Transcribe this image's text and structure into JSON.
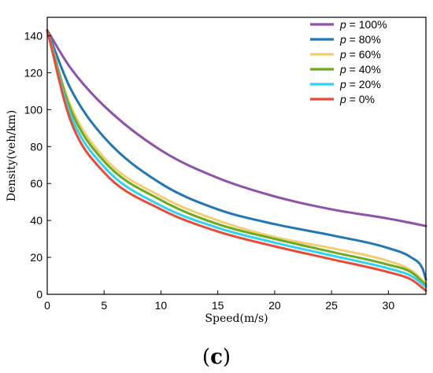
{
  "chart_data": {
    "type": "line",
    "xlabel": "Speed(m/s)",
    "ylabel": "Density(veh/km)",
    "xlim": [
      0,
      33.3
    ],
    "ylim": [
      0,
      150
    ],
    "xticks": [
      0,
      5,
      10,
      15,
      20,
      25,
      30
    ],
    "yticks": [
      0,
      20,
      40,
      60,
      80,
      100,
      120,
      140
    ],
    "grid": false,
    "legend_position": "top-right",
    "panel_label": "(c)",
    "panel_label_parts": {
      "open": "(",
      "letter": "c",
      "close": ")"
    },
    "series": [
      {
        "name": "p = 100%",
        "label_p": "p",
        "label_rest": " = 100%",
        "color": "#8e52a8",
        "x": [
          0,
          2,
          5,
          10,
          15,
          20,
          25,
          30,
          33.3
        ],
        "y": [
          143,
          123,
          102,
          78,
          63,
          53,
          46,
          41,
          37
        ]
      },
      {
        "name": "p = 80%",
        "label_p": "p",
        "label_rest": " = 80%",
        "color": "#2278b5",
        "x": [
          0,
          2,
          5,
          10,
          15,
          20,
          25,
          30,
          32,
          33,
          33.3
        ],
        "y": [
          143,
          112,
          85,
          60,
          46,
          38,
          32,
          25,
          20,
          14,
          8
        ]
      },
      {
        "name": "p = 60%",
        "label_p": "p",
        "label_rest": " = 60%",
        "color": "#f3cd72",
        "x": [
          0,
          2,
          5,
          10,
          15,
          20,
          25,
          30,
          32,
          33.3
        ],
        "y": [
          143,
          103,
          74,
          53,
          40,
          31,
          25,
          18,
          13,
          6
        ]
      },
      {
        "name": "p = 40%",
        "label_p": "p",
        "label_rest": " = 40%",
        "color": "#6aab1f",
        "x": [
          0,
          2,
          5,
          10,
          15,
          20,
          25,
          30,
          32,
          33.3
        ],
        "y": [
          143,
          101,
          72,
          51,
          38,
          30,
          23,
          16,
          12,
          5
        ]
      },
      {
        "name": "p = 20%",
        "label_p": "p",
        "label_rest": " = 20%",
        "color": "#2fd3f2",
        "x": [
          0,
          2,
          5,
          10,
          15,
          20,
          25,
          30,
          32,
          33.3
        ],
        "y": [
          143,
          98,
          69,
          48,
          36,
          28,
          21,
          14,
          10,
          4
        ]
      },
      {
        "name": "p = 0%",
        "label_p": "p",
        "label_rest": " = 0%",
        "color": "#ea4a36",
        "x": [
          0,
          2,
          5,
          10,
          15,
          20,
          25,
          30,
          32,
          33.3
        ],
        "y": [
          143,
          95,
          66,
          46,
          34,
          26,
          19,
          12,
          8,
          2
        ]
      }
    ]
  }
}
